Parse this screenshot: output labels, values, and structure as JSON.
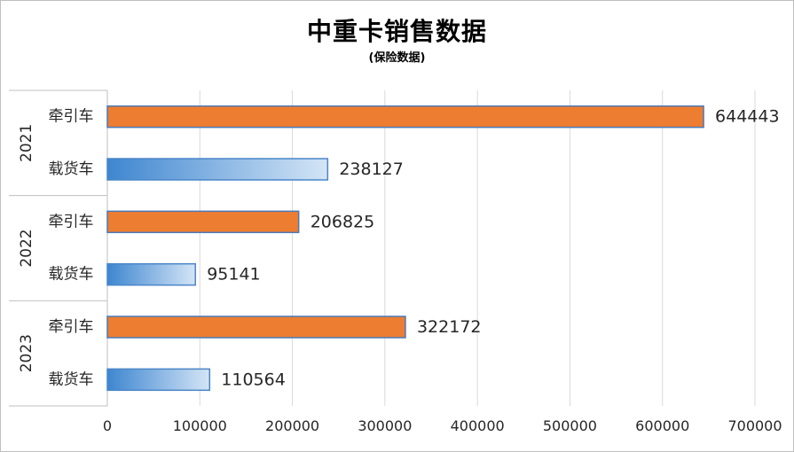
{
  "chart_data": {
    "type": "bar",
    "orientation": "horizontal",
    "title": "中重卡销售数据",
    "subtitle": "(保险数据)",
    "groups": [
      {
        "label": "2021",
        "items": [
          {
            "category": "牵引车",
            "value": 644443
          },
          {
            "category": "载货车",
            "value": 238127
          }
        ]
      },
      {
        "label": "2022",
        "items": [
          {
            "category": "牵引车",
            "value": 206825
          },
          {
            "category": "载货车",
            "value": 95141
          }
        ]
      },
      {
        "label": "2023",
        "items": [
          {
            "category": "牵引车",
            "value": 322172
          },
          {
            "category": "载货车",
            "value": 110564
          }
        ]
      }
    ],
    "xlim": [
      0,
      700000
    ],
    "xticks": [
      0,
      100000,
      200000,
      300000,
      400000,
      500000,
      600000,
      700000
    ],
    "grid": true,
    "legend": "none",
    "data_labels": true,
    "colors": {
      "牵引车": "#ED7D31",
      "载货车": "#5B9BD5",
      "border": "#4472C4"
    }
  }
}
